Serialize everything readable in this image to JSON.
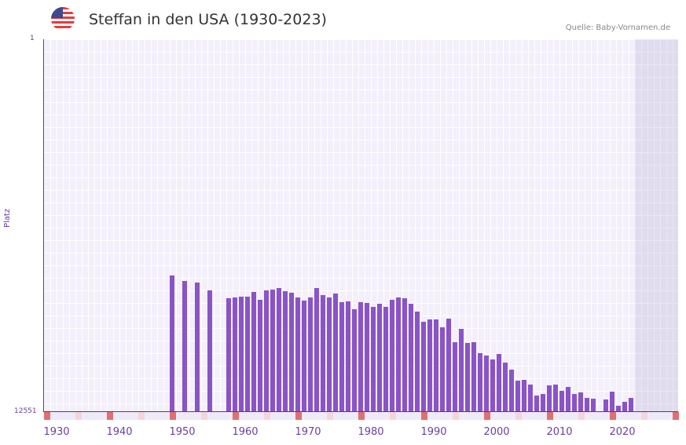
{
  "header": {
    "title": "Steffan in den USA (1930-2023)",
    "source": "Quelle: Baby-Vornamen.de",
    "flag_icon": "us-flag-icon"
  },
  "colors": {
    "bar": "#8a54c6",
    "axis": "#6a2d8f",
    "marker_strong": "#e07070",
    "marker_light": "#f5d4dc"
  },
  "chart_data": {
    "type": "bar",
    "title": "Steffan in den USA (1930-2023)",
    "xlabel": "",
    "ylabel": "Platz",
    "ylim": [
      12551,
      1
    ],
    "y_ticks": [
      "1",
      "12551"
    ],
    "x_ticks": [
      "1930",
      "1940",
      "1950",
      "1960",
      "1970",
      "1980",
      "1990",
      "2000",
      "2010",
      "2020"
    ],
    "grid": true,
    "x": [
      1948,
      1950,
      1952,
      1954,
      1957,
      1958,
      1959,
      1960,
      1961,
      1962,
      1963,
      1964,
      1965,
      1966,
      1967,
      1968,
      1969,
      1970,
      1971,
      1972,
      1973,
      1974,
      1975,
      1976,
      1977,
      1978,
      1979,
      1980,
      1981,
      1982,
      1983,
      1984,
      1985,
      1986,
      1987,
      1988,
      1989,
      1990,
      1991,
      1992,
      1993,
      1994,
      1995,
      1996,
      1997,
      1998,
      1999,
      2000,
      2001,
      2002,
      2003,
      2004,
      2005,
      2006,
      2007,
      2008,
      2009,
      2010,
      2011,
      2012,
      2013,
      2014,
      2015,
      2017,
      2018,
      2019,
      2020,
      2021
    ],
    "values": [
      7961,
      8147,
      8200,
      8464,
      8729,
      8702,
      8676,
      8676,
      8517,
      8782,
      8464,
      8438,
      8385,
      8491,
      8544,
      8702,
      8808,
      8702,
      8385,
      8623,
      8702,
      8570,
      8861,
      8835,
      9099,
      8861,
      8888,
      9020,
      8914,
      9020,
      8782,
      8702,
      8729,
      8914,
      9179,
      9523,
      9443,
      9443,
      9708,
      9417,
      10211,
      9761,
      10238,
      10211,
      10582,
      10661,
      10794,
      10608,
      10899,
      11137,
      11508,
      11482,
      11641,
      12011,
      11958,
      11667,
      11641,
      11852,
      11720,
      11958,
      11905,
      12091,
      12117,
      12143,
      11879,
      12355,
      12223,
      12091
    ]
  },
  "axis": {
    "y_top": "1",
    "y_bottom": "12551",
    "y_title": "Platz"
  }
}
